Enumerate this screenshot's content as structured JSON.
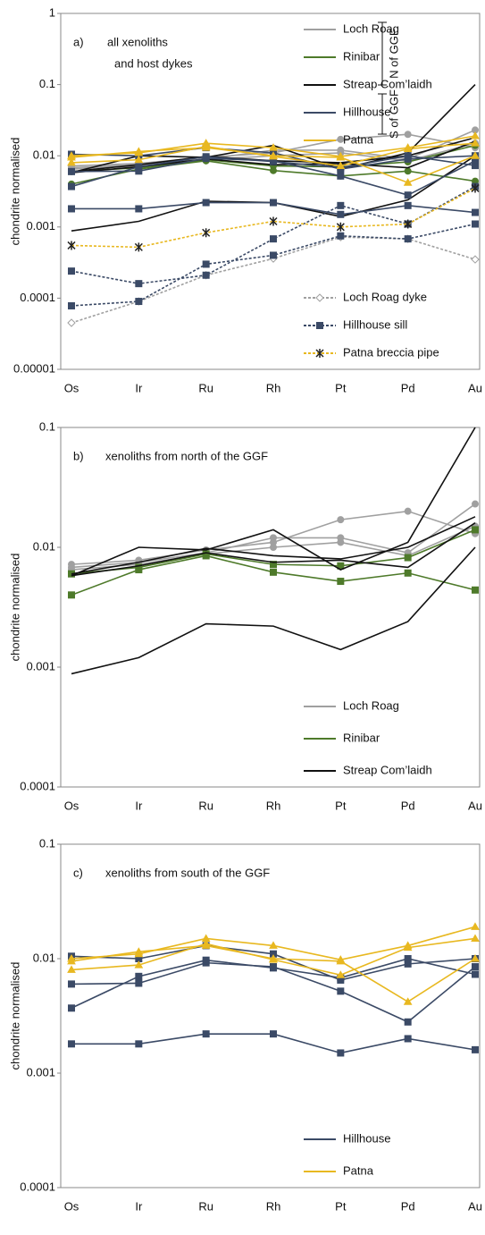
{
  "chart_data": [
    {
      "type": "line",
      "ylog": true,
      "panel_label": "a)",
      "title": [
        "all xenoliths",
        "and host dykes"
      ],
      "ylabel": "chondrite normalised",
      "categories": [
        "Os",
        "Ir",
        "Ru",
        "Rh",
        "Pt",
        "Pd",
        "Au"
      ],
      "ylim": [
        1e-05,
        1
      ],
      "yticks": [
        1e-05,
        0.0001,
        0.001,
        0.01,
        0.1,
        1
      ],
      "annotations": [
        "N of GGF",
        "S of GGF"
      ],
      "groups": [
        {
          "name": "Loch Roag",
          "color": "#a0a0a0",
          "marker": "circle",
          "legend": "upper",
          "lines": [
            [
              0.0072,
              0.0078,
              0.0095,
              0.011,
              0.017,
              0.02,
              0.013
            ],
            [
              0.0068,
              0.0075,
              0.009,
              0.012,
              0.012,
              0.009,
              0.023
            ],
            [
              0.0065,
              0.0072,
              0.0088,
              0.01,
              0.011,
              0.0085,
              0.015
            ]
          ]
        },
        {
          "name": "Rinibar",
          "color": "#4e7a2a",
          "marker": "circle",
          "legend": "upper",
          "lines": [
            [
              0.004,
              0.0065,
              0.0085,
              0.0062,
              0.0052,
              0.0061,
              0.0044
            ],
            [
              0.006,
              0.0068,
              0.0088,
              0.0072,
              0.007,
              0.0082,
              0.014
            ]
          ]
        },
        {
          "name": "Streap Com’laidh",
          "color": "#111111",
          "marker": "none",
          "legend": "upper",
          "lines": [
            [
              0.00088,
              0.0012,
              0.0023,
              0.0022,
              0.0014,
              0.0024,
              0.01
            ],
            [
              0.0058,
              0.01,
              0.0095,
              0.014,
              0.0065,
              0.011,
              0.1
            ],
            [
              0.006,
              0.0075,
              0.0098,
              0.0085,
              0.008,
              0.01,
              0.018
            ],
            [
              0.0058,
              0.007,
              0.009,
              0.0075,
              0.0078,
              0.0068,
              0.016
            ]
          ]
        },
        {
          "name": "Hillhouse",
          "color": "#3b4a66",
          "marker": "square",
          "legend": "upper",
          "lines": [
            [
              0.0018,
              0.0018,
              0.0022,
              0.0022,
              0.0015,
              0.002,
              0.0016
            ],
            [
              0.006,
              0.0061,
              0.0092,
              0.0085,
              0.0052,
              0.0028,
              0.0085
            ],
            [
              0.0037,
              0.007,
              0.0097,
              0.0083,
              0.0068,
              0.01,
              0.0073
            ],
            [
              0.0105,
              0.01,
              0.013,
              0.011,
              0.0065,
              0.009,
              0.01
            ]
          ]
        },
        {
          "name": "Patna",
          "color": "#e8b820",
          "marker": "triangle",
          "legend": "upper",
          "lines": [
            [
              0.01,
              0.011,
              0.015,
              0.013,
              0.0098,
              0.013,
              0.019
            ],
            [
              0.0095,
              0.0115,
              0.013,
              0.01,
              0.0095,
              0.0042,
              0.01
            ],
            [
              0.008,
              0.0088,
              0.0135,
              0.0098,
              0.0072,
              0.0125,
              0.015
            ]
          ]
        },
        {
          "name": "Loch Roag dyke",
          "color": "#a0a0a0",
          "marker": "diamond",
          "dashed": true,
          "legend": "lower",
          "lines": [
            [
              4.5e-05,
              9e-05,
              0.00021,
              0.00036,
              0.00072,
              0.00068,
              0.00035
            ]
          ]
        },
        {
          "name": "Hillhouse sill",
          "color": "#3b4a66",
          "marker": "square",
          "dashed": true,
          "legend": "lower",
          "lines": [
            [
              7.8e-05,
              9e-05,
              0.0003,
              0.0004,
              0.00075,
              0.00068,
              0.0011
            ],
            [
              0.00024,
              0.00016,
              0.00021,
              0.00068,
              0.002,
              0.0011,
              0.0037
            ]
          ]
        },
        {
          "name": "Patna breccia pipe",
          "color": "#e8b820",
          "marker": "star",
          "dashed": true,
          "legend": "lower",
          "lines": [
            [
              0.00055,
              0.00052,
              0.00083,
              0.0012,
              0.001,
              0.0011,
              0.0035
            ]
          ]
        }
      ]
    },
    {
      "type": "line",
      "ylog": true,
      "panel_label": "b)",
      "title": [
        "xenoliths from north of the GGF"
      ],
      "ylabel": "chondrite normalised",
      "categories": [
        "Os",
        "Ir",
        "Ru",
        "Rh",
        "Pt",
        "Pd",
        "Au"
      ],
      "ylim": [
        0.0001,
        0.1
      ],
      "yticks": [
        0.0001,
        0.001,
        0.01,
        0.1
      ],
      "groups": [
        {
          "name": "Loch Roag",
          "color": "#a0a0a0",
          "marker": "circle",
          "legend": "lower",
          "lines": [
            [
              0.0072,
              0.0078,
              0.0095,
              0.011,
              0.017,
              0.02,
              0.013
            ],
            [
              0.0068,
              0.0075,
              0.009,
              0.012,
              0.012,
              0.009,
              0.023
            ],
            [
              0.0065,
              0.0072,
              0.0088,
              0.01,
              0.011,
              0.0085,
              0.015
            ]
          ]
        },
        {
          "name": "Rinibar",
          "color": "#4e7a2a",
          "marker": "square",
          "legend": "lower",
          "lines": [
            [
              0.004,
              0.0065,
              0.0085,
              0.0062,
              0.0052,
              0.0061,
              0.0044
            ],
            [
              0.006,
              0.0068,
              0.0088,
              0.0072,
              0.007,
              0.0082,
              0.014
            ]
          ]
        },
        {
          "name": "Streap Com’laidh",
          "color": "#111111",
          "marker": "none",
          "legend": "lower",
          "lines": [
            [
              0.00088,
              0.0012,
              0.0023,
              0.0022,
              0.0014,
              0.0024,
              0.01
            ],
            [
              0.0058,
              0.01,
              0.0095,
              0.014,
              0.0065,
              0.011,
              0.1
            ],
            [
              0.006,
              0.0075,
              0.0098,
              0.0085,
              0.008,
              0.01,
              0.018
            ],
            [
              0.0058,
              0.007,
              0.009,
              0.0075,
              0.0078,
              0.0068,
              0.016
            ]
          ]
        }
      ]
    },
    {
      "type": "line",
      "ylog": true,
      "panel_label": "c)",
      "title": [
        "xenoliths from south of the GGF"
      ],
      "ylabel": "chondrite normalised",
      "categories": [
        "Os",
        "Ir",
        "Ru",
        "Rh",
        "Pt",
        "Pd",
        "Au"
      ],
      "ylim": [
        0.0001,
        0.1
      ],
      "yticks": [
        0.0001,
        0.001,
        0.01,
        0.1
      ],
      "groups": [
        {
          "name": "Hillhouse",
          "color": "#3b4a66",
          "marker": "square",
          "legend": "lower",
          "lines": [
            [
              0.0018,
              0.0018,
              0.0022,
              0.0022,
              0.0015,
              0.002,
              0.0016
            ],
            [
              0.006,
              0.0061,
              0.0092,
              0.0085,
              0.0052,
              0.0028,
              0.0085
            ],
            [
              0.0037,
              0.007,
              0.0097,
              0.0083,
              0.0068,
              0.01,
              0.0073
            ],
            [
              0.0105,
              0.01,
              0.013,
              0.011,
              0.0065,
              0.009,
              0.01
            ]
          ]
        },
        {
          "name": "Patna",
          "color": "#e8b820",
          "marker": "triangle",
          "legend": "lower",
          "lines": [
            [
              0.01,
              0.011,
              0.015,
              0.013,
              0.0098,
              0.013,
              0.019
            ],
            [
              0.0095,
              0.0115,
              0.013,
              0.01,
              0.0095,
              0.0042,
              0.01
            ],
            [
              0.008,
              0.0088,
              0.0135,
              0.0098,
              0.0072,
              0.0125,
              0.015
            ]
          ]
        }
      ]
    }
  ]
}
